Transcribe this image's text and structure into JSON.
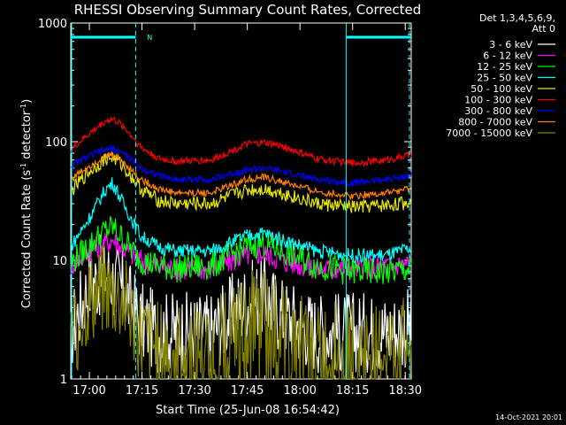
{
  "chart_data": {
    "type": "line",
    "title": "RHESSI Observing Summary Count Rates, Corrected",
    "xlabel": "Start Time (25-Jun-08 16:54:42)",
    "ylabel_main": "Corrected Count Rate (s",
    "ylabel_sup1": "-1",
    "ylabel_mid": " detector",
    "ylabel_sup2": "-1",
    "ylabel_end": ")",
    "yscale": "log",
    "ylim": [
      1,
      1000
    ],
    "xlim_minutes": [
      0,
      97
    ],
    "x_start": "16:54:42",
    "xticks": [
      {
        "label": "17:00",
        "minute": 5.3
      },
      {
        "label": "17:15",
        "minute": 20.3
      },
      {
        "label": "17:30",
        "minute": 35.3
      },
      {
        "label": "17:45",
        "minute": 50.3
      },
      {
        "label": "18:00",
        "minute": 65.3
      },
      {
        "label": "18:15",
        "minute": 80.3
      },
      {
        "label": "18:30",
        "minute": 95.3
      }
    ],
    "yticks": [
      {
        "label": "1",
        "value": 1
      },
      {
        "label": "10",
        "value": 10
      },
      {
        "label": "100",
        "value": 100
      },
      {
        "label": "1000",
        "value": 1000
      }
    ],
    "legend_header": [
      "Det 1,3,4,5,6,9,",
      "Att 0"
    ],
    "legend_position": "right",
    "markers": {
      "night_bands": [
        [
          0,
          18.5
        ],
        [
          78.5,
          97
        ]
      ],
      "saa_label": "N",
      "saa_label_minute": 20.5,
      "dashed_lines": [
        18.5,
        78.5
      ],
      "solid_line": 78.5,
      "right_dashed": 96.5
    },
    "series": [
      {
        "name": "3 - 6 keV",
        "color": "#ffffff",
        "x": [
          0,
          5,
          10,
          15,
          20,
          25,
          30,
          40,
          50,
          55,
          60,
          70,
          80,
          90,
          97
        ],
        "y": [
          2.5,
          6,
          8,
          5.5,
          3,
          2.5,
          2.5,
          2.5,
          4.5,
          5,
          3.5,
          2.5,
          2.5,
          2.5,
          2.8
        ]
      },
      {
        "name": "6 - 12 keV",
        "color": "#ff00ff",
        "x": [
          0,
          5,
          10,
          12,
          15,
          20,
          25,
          30,
          40,
          50,
          55,
          60,
          70,
          80,
          90,
          97
        ],
        "y": [
          9,
          12,
          14,
          15,
          12.5,
          10,
          9,
          8.5,
          8.5,
          11,
          11.5,
          10,
          8.5,
          8.5,
          9,
          9.5
        ]
      },
      {
        "name": "12 - 25 keV",
        "color": "#00ff00",
        "x": [
          0,
          5,
          10,
          12,
          15,
          20,
          25,
          30,
          40,
          50,
          55,
          60,
          70,
          80,
          90,
          97
        ],
        "y": [
          9.5,
          13,
          18,
          19,
          15,
          10,
          9,
          8.5,
          9,
          13,
          14,
          12,
          9,
          8,
          8,
          8.5
        ]
      },
      {
        "name": "25 - 50 keV",
        "color": "#00ffff",
        "x": [
          0,
          5,
          10,
          12,
          15,
          20,
          25,
          30,
          40,
          50,
          55,
          60,
          70,
          80,
          90,
          97
        ],
        "y": [
          13,
          22,
          40,
          45,
          30,
          16,
          13,
          12,
          12,
          16,
          17,
          15,
          12,
          11,
          11,
          12.5
        ]
      },
      {
        "name": "50 - 100 keV",
        "color": "#e6e600",
        "x": [
          0,
          5,
          10,
          12,
          15,
          20,
          25,
          30,
          40,
          50,
          55,
          60,
          70,
          80,
          90,
          97
        ],
        "y": [
          38,
          55,
          72,
          74,
          62,
          40,
          32,
          30,
          30,
          39,
          40,
          37,
          30,
          28,
          29,
          31
        ]
      },
      {
        "name": "100 - 300 keV",
        "color": "#ff0000",
        "x": [
          0,
          5,
          10,
          12,
          15,
          20,
          25,
          30,
          40,
          50,
          55,
          60,
          70,
          80,
          90,
          97
        ],
        "y": [
          85,
          115,
          150,
          155,
          135,
          90,
          72,
          68,
          70,
          95,
          98,
          92,
          72,
          66,
          70,
          78
        ]
      },
      {
        "name": "300 - 800 keV",
        "color": "#0000ff",
        "x": [
          0,
          5,
          10,
          12,
          15,
          20,
          25,
          30,
          40,
          50,
          55,
          60,
          70,
          80,
          90,
          97
        ],
        "y": [
          62,
          75,
          86,
          88,
          80,
          60,
          52,
          48,
          48,
          58,
          60,
          56,
          48,
          45,
          48,
          52
        ]
      },
      {
        "name": "800 - 7000 keV",
        "color": "#ff7f00",
        "x": [
          0,
          5,
          10,
          12,
          15,
          20,
          25,
          30,
          40,
          50,
          55,
          60,
          70,
          80,
          90,
          97
        ],
        "y": [
          48,
          62,
          75,
          78,
          68,
          48,
          40,
          37,
          37,
          48,
          50,
          46,
          38,
          35,
          37,
          40
        ]
      },
      {
        "name": "7000 - 15000 keV",
        "color": "#808000",
        "x": [
          0,
          5,
          10,
          15,
          20,
          25,
          30,
          40,
          50,
          55,
          60,
          70,
          80,
          90,
          97
        ],
        "y": [
          2.2,
          4.5,
          5.5,
          4.5,
          2.2,
          1.8,
          1.8,
          1.8,
          3.2,
          3.5,
          2.5,
          1.8,
          1.8,
          1.8,
          2
        ]
      }
    ],
    "footer_date": "14-Oct-2021 20:01"
  }
}
